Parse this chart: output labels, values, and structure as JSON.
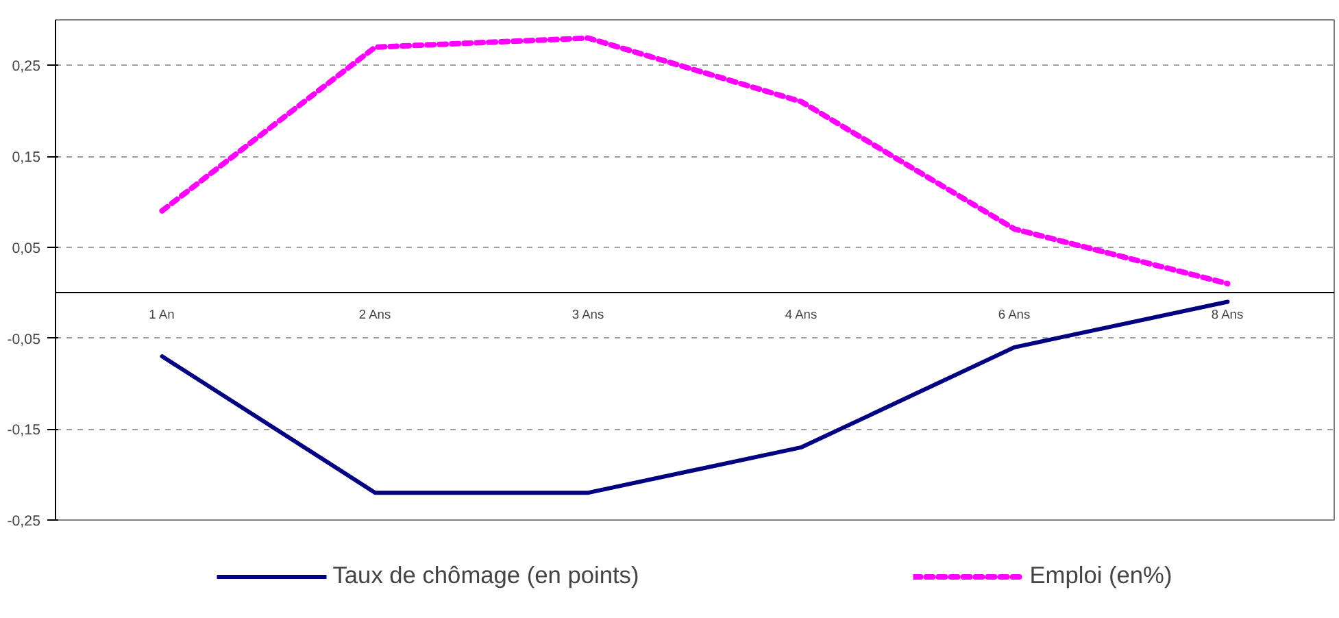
{
  "chart_data": {
    "type": "line",
    "categories": [
      "1 An",
      "2 Ans",
      "3 Ans",
      "4 Ans",
      "6 Ans",
      "8 Ans"
    ],
    "series": [
      {
        "name": "Taux de chômage (en points)",
        "color": "#000080",
        "values": [
          -0.07,
          -0.22,
          -0.22,
          -0.17,
          -0.06,
          -0.01
        ],
        "line_style": "solid"
      },
      {
        "name": "Emploi (en%)",
        "color": "#ff00ff",
        "values": [
          0.09,
          0.27,
          0.28,
          0.21,
          0.07,
          0.01
        ],
        "line_style": "dashed"
      }
    ],
    "ylim": [
      -0.25,
      0.3
    ],
    "yticks": [
      {
        "value": -0.25,
        "label": "-0,25"
      },
      {
        "value": -0.15,
        "label": "-0,15"
      },
      {
        "value": -0.05,
        "label": "-0,05"
      },
      {
        "value": 0.05,
        "label": "0,05"
      },
      {
        "value": 0.15,
        "label": "0,15"
      },
      {
        "value": 0.25,
        "label": "0,25"
      }
    ],
    "grid": "y",
    "legend": "bottom",
    "marker": "none"
  }
}
